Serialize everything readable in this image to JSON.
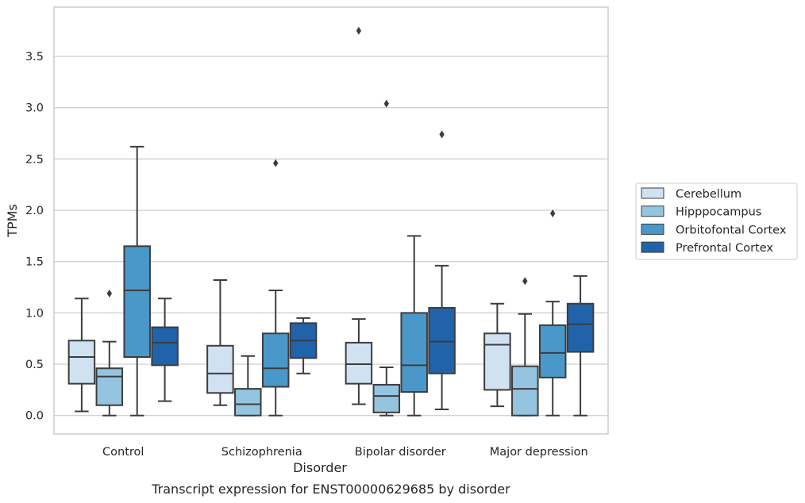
{
  "chart_data": {
    "type": "box",
    "title": "",
    "caption": "Transcript expression for ENST00000629685 by disorder",
    "xlabel": "Disorder",
    "ylabel": "TPMs",
    "ylim": [
      -0.18,
      3.98
    ],
    "yticks": [
      0.0,
      0.5,
      1.0,
      1.5,
      2.0,
      2.5,
      3.0,
      3.5
    ],
    "ytick_labels": [
      "0.0",
      "0.5",
      "1.0",
      "1.5",
      "2.0",
      "2.5",
      "3.0",
      "3.5"
    ],
    "categories": [
      "Control",
      "Schizophrenia",
      "Bipolar disorder",
      "Major depression"
    ],
    "grid": "horizontal",
    "legend_position": "right",
    "series": [
      {
        "name": "Cerebellum",
        "color": "#d0e1f2",
        "boxes": [
          {
            "whisker_low": 0.04,
            "q1": 0.31,
            "median": 0.57,
            "q3": 0.73,
            "whisker_high": 1.14,
            "outliers": []
          },
          {
            "whisker_low": 0.1,
            "q1": 0.22,
            "median": 0.41,
            "q3": 0.68,
            "whisker_high": 1.32,
            "outliers": []
          },
          {
            "whisker_low": 0.11,
            "q1": 0.31,
            "median": 0.5,
            "q3": 0.71,
            "whisker_high": 0.94,
            "outliers": [
              3.75
            ]
          },
          {
            "whisker_low": 0.09,
            "q1": 0.25,
            "median": 0.69,
            "q3": 0.8,
            "whisker_high": 1.09,
            "outliers": []
          }
        ]
      },
      {
        "name": "Hipppocampus",
        "color": "#94c4df",
        "boxes": [
          {
            "whisker_low": 0.0,
            "q1": 0.1,
            "median": 0.38,
            "q3": 0.46,
            "whisker_high": 0.72,
            "outliers": [
              1.19
            ]
          },
          {
            "whisker_low": 0.0,
            "q1": 0.0,
            "median": 0.11,
            "q3": 0.26,
            "whisker_high": 0.58,
            "outliers": []
          },
          {
            "whisker_low": 0.0,
            "q1": 0.03,
            "median": 0.19,
            "q3": 0.3,
            "whisker_high": 0.47,
            "outliers": [
              3.04
            ]
          },
          {
            "whisker_low": 0.0,
            "q1": 0.0,
            "median": 0.26,
            "q3": 0.48,
            "whisker_high": 0.99,
            "outliers": [
              1.31
            ]
          }
        ]
      },
      {
        "name": "Orbitofontal Cortex",
        "color": "#4a98c9",
        "boxes": [
          {
            "whisker_low": 0.0,
            "q1": 0.57,
            "median": 1.22,
            "q3": 1.65,
            "whisker_high": 2.62,
            "outliers": []
          },
          {
            "whisker_low": 0.0,
            "q1": 0.28,
            "median": 0.46,
            "q3": 0.8,
            "whisker_high": 1.22,
            "outliers": [
              2.46
            ]
          },
          {
            "whisker_low": 0.0,
            "q1": 0.23,
            "median": 0.49,
            "q3": 1.0,
            "whisker_high": 1.75,
            "outliers": []
          },
          {
            "whisker_low": 0.0,
            "q1": 0.37,
            "median": 0.61,
            "q3": 0.88,
            "whisker_high": 1.11,
            "outliers": [
              1.97
            ]
          }
        ]
      },
      {
        "name": "Prefrontal Cortex",
        "color": "#2163aa",
        "boxes": [
          {
            "whisker_low": 0.14,
            "q1": 0.49,
            "median": 0.71,
            "q3": 0.86,
            "whisker_high": 1.14,
            "outliers": []
          },
          {
            "whisker_low": 0.41,
            "q1": 0.56,
            "median": 0.73,
            "q3": 0.9,
            "whisker_high": 0.95,
            "outliers": []
          },
          {
            "whisker_low": 0.06,
            "q1": 0.41,
            "median": 0.72,
            "q3": 1.05,
            "whisker_high": 1.46,
            "outliers": [
              2.74
            ]
          },
          {
            "whisker_low": 0.0,
            "q1": 0.62,
            "median": 0.89,
            "q3": 1.09,
            "whisker_high": 1.36,
            "outliers": []
          }
        ]
      }
    ]
  }
}
